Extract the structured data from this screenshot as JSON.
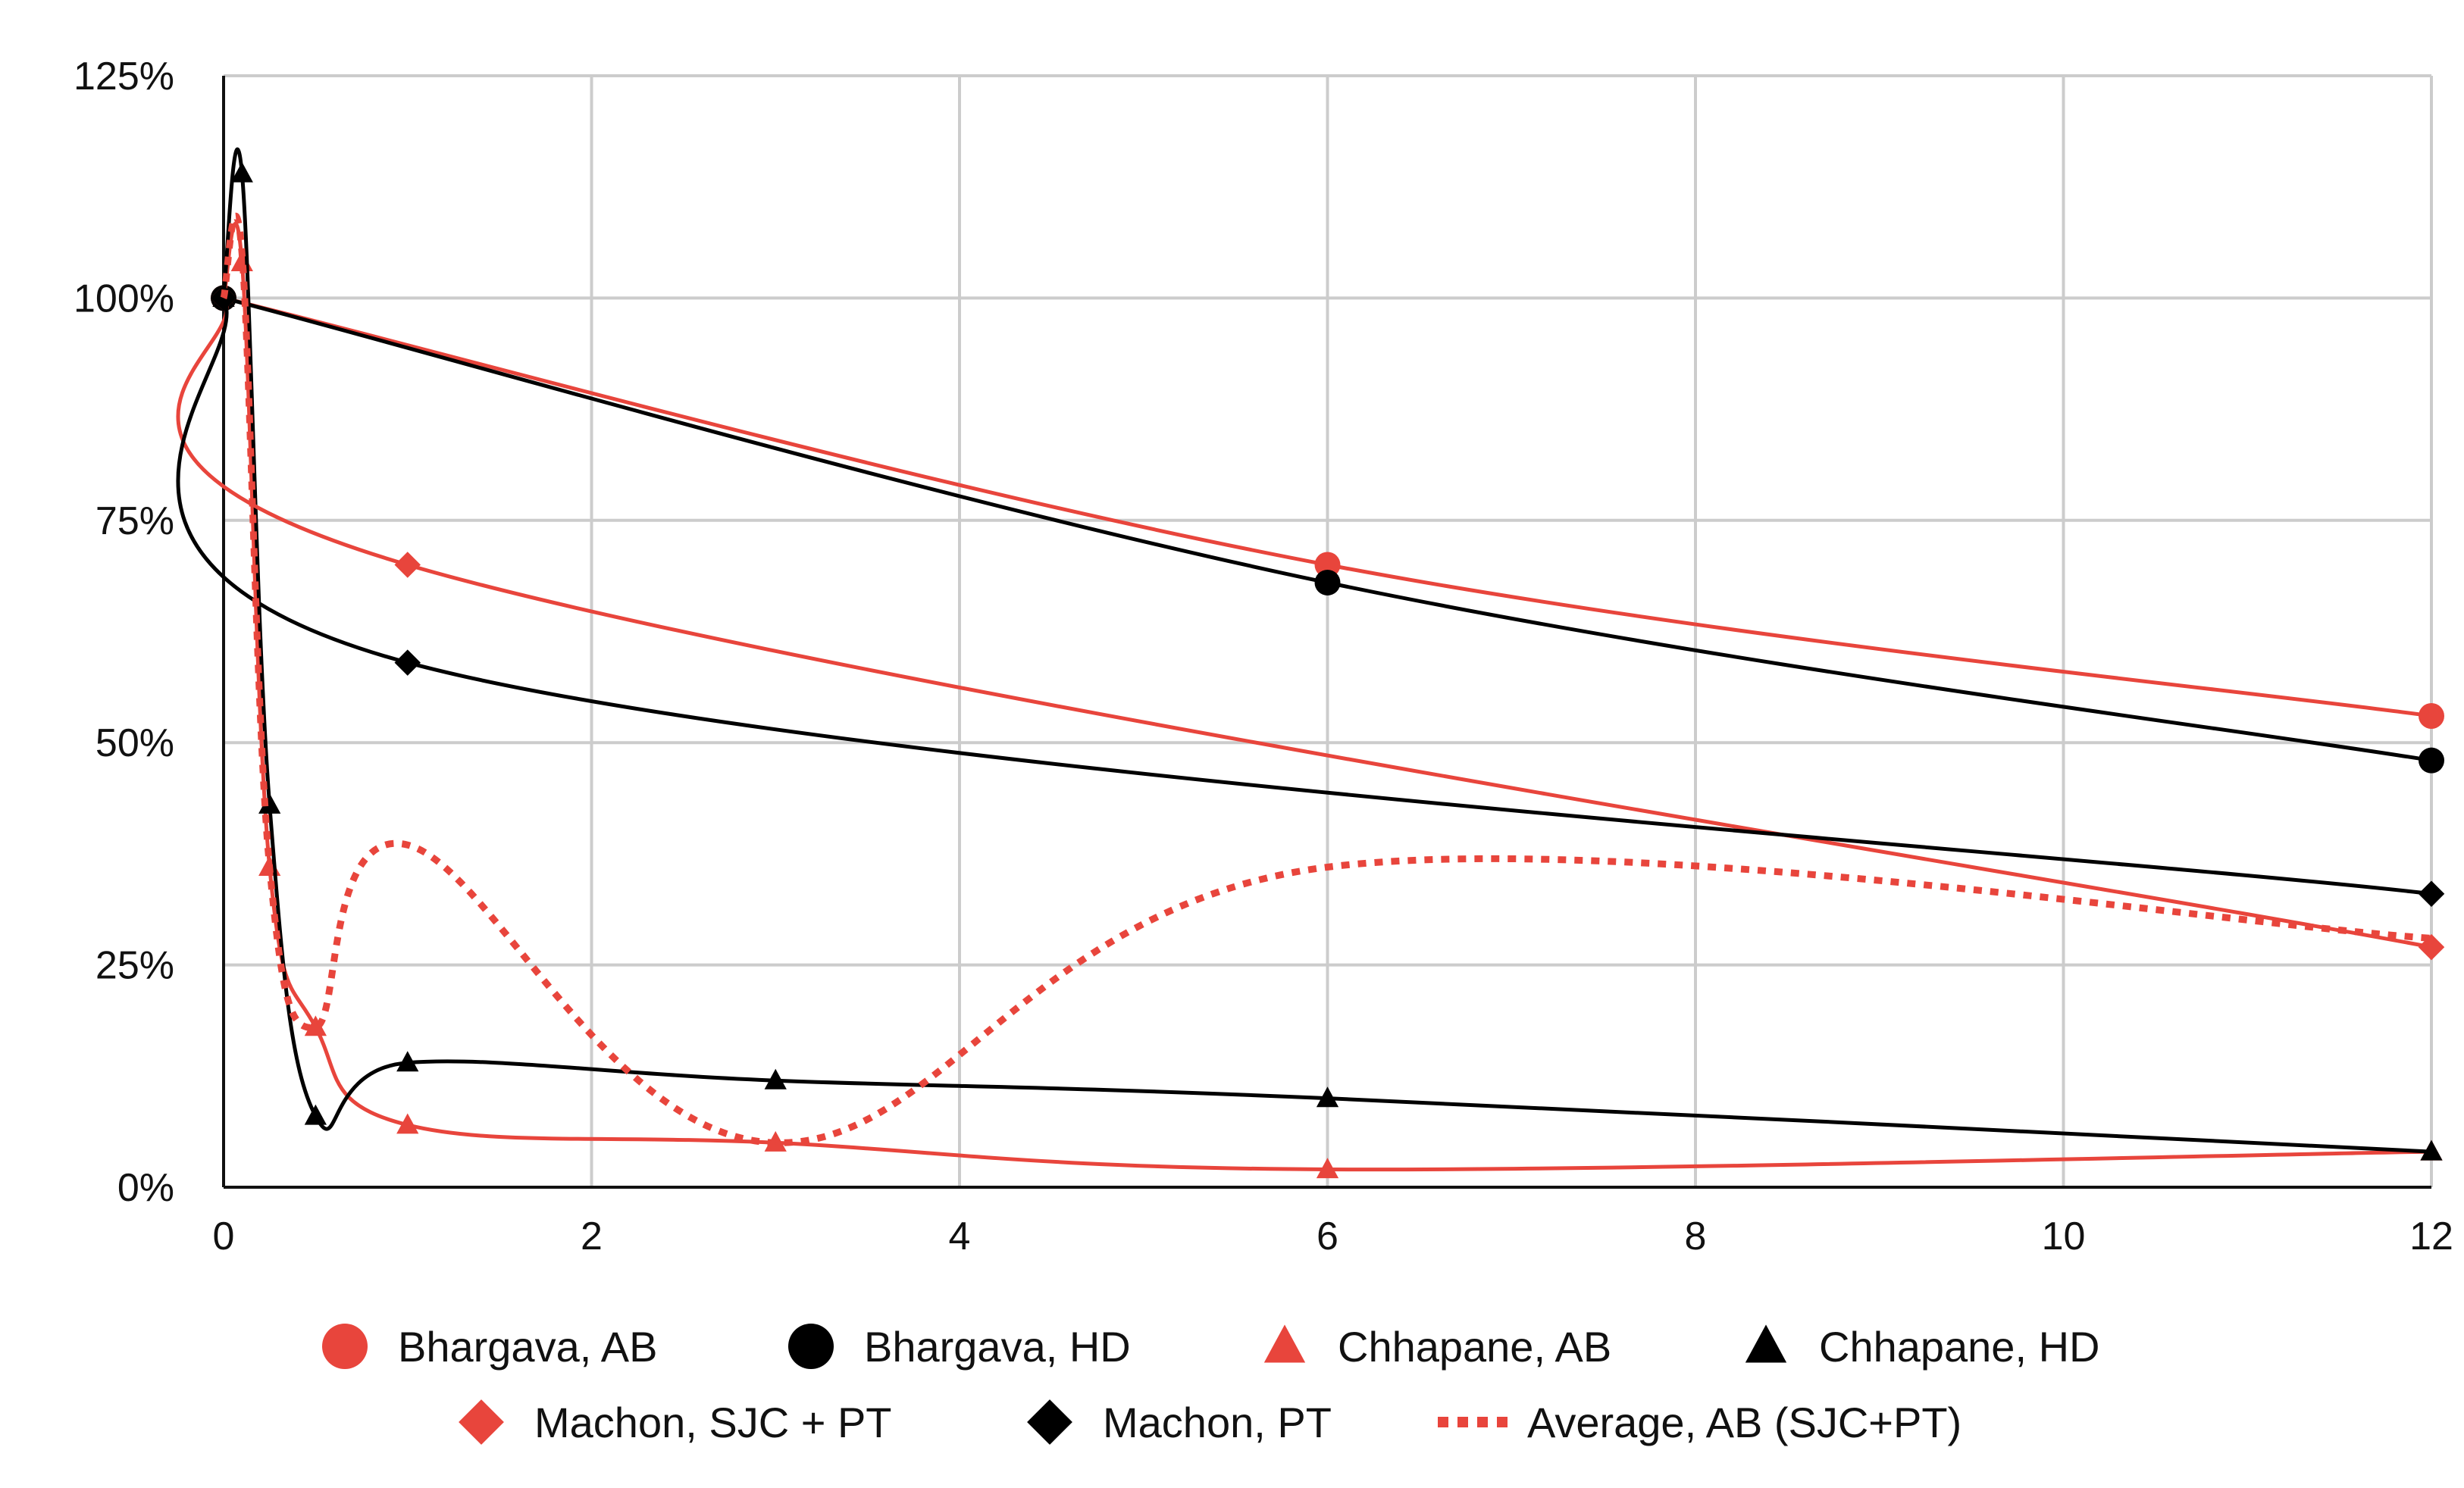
{
  "chart_data": {
    "type": "line",
    "title": "",
    "xlabel": "",
    "ylabel": "",
    "xlim": [
      0,
      12
    ],
    "ylim": [
      0,
      1.25
    ],
    "x_ticks": [
      0,
      2,
      4,
      6,
      8,
      10,
      12
    ],
    "x_tick_labels": [
      "0",
      "2",
      "4",
      "6",
      "8",
      "10",
      "12"
    ],
    "y_ticks": [
      0,
      0.25,
      0.5,
      0.75,
      1.0,
      1.25
    ],
    "y_tick_labels": [
      "0%",
      "25%",
      "50%",
      "75%",
      "100%",
      "125%"
    ],
    "grid": true,
    "legend_position": "bottom",
    "series": [
      {
        "name": "Bhargava, AB",
        "color": "#e8453c",
        "marker": "circle",
        "line": "solid",
        "x": [
          0,
          6,
          12
        ],
        "y": [
          1.0,
          0.7,
          0.53
        ]
      },
      {
        "name": "Bhargava, HD",
        "color": "#000000",
        "marker": "circle",
        "line": "solid",
        "x": [
          0,
          6,
          12
        ],
        "y": [
          1.0,
          0.68,
          0.48
        ]
      },
      {
        "name": "Chhapane, AB",
        "color": "#e8453c",
        "marker": "triangle",
        "line": "solid",
        "x": [
          0,
          0.1,
          0.25,
          0.5,
          1,
          3,
          6,
          12
        ],
        "y": [
          1.0,
          1.04,
          0.36,
          0.18,
          0.07,
          0.05,
          0.02,
          0.04
        ]
      },
      {
        "name": "Chhapane, HD",
        "color": "#000000",
        "marker": "triangle",
        "line": "solid",
        "x": [
          0,
          0.1,
          0.25,
          0.5,
          1,
          3,
          6,
          12
        ],
        "y": [
          1.0,
          1.14,
          0.43,
          0.08,
          0.14,
          0.12,
          0.1,
          0.04
        ]
      },
      {
        "name": "Machon, SJC + PT",
        "color": "#e8453c",
        "marker": "diamond",
        "line": "solid",
        "x": [
          0,
          1,
          12
        ],
        "y": [
          1.0,
          0.7,
          0.27
        ]
      },
      {
        "name": "Machon, PT",
        "color": "#000000",
        "marker": "diamond",
        "line": "solid",
        "x": [
          0,
          1,
          12
        ],
        "y": [
          1.0,
          0.59,
          0.33
        ]
      },
      {
        "name": "Average, AB (SJC+PT)",
        "color": "#e8453c",
        "marker": "none",
        "line": "dotted",
        "x": [
          0,
          0.1,
          0.25,
          0.5,
          1,
          3,
          6,
          12
        ],
        "y": [
          1.0,
          1.05,
          0.36,
          0.18,
          0.385,
          0.05,
          0.36,
          0.28
        ]
      }
    ]
  }
}
